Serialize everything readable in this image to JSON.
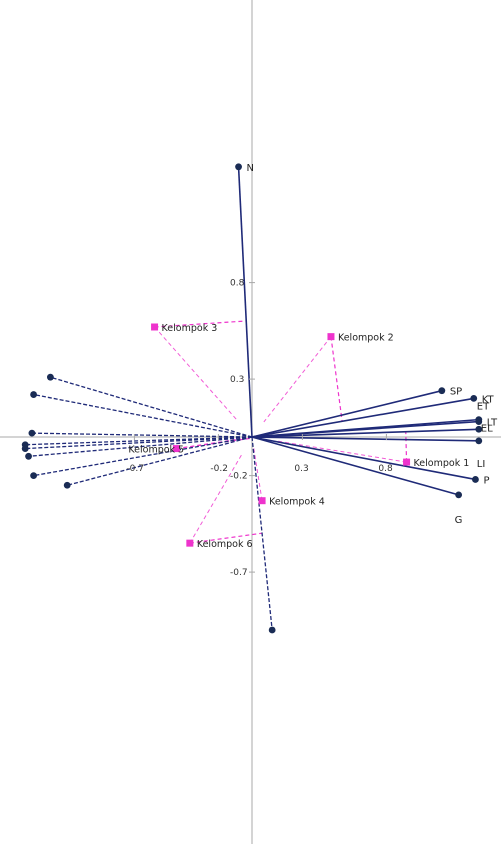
{
  "chart_data": {
    "type": "scatter",
    "title": "",
    "xlabel": "",
    "ylabel": "",
    "xlim": [
      -1.45,
      1.5
    ],
    "ylim": [
      -1.2,
      1.5
    ],
    "x_ticks": [
      {
        "value": -0.7,
        "label": "-0.7"
      },
      {
        "value": -0.2,
        "label": "-0.2"
      },
      {
        "value": 0.3,
        "label": "0.3"
      },
      {
        "value": 0.8,
        "label": "0.8"
      }
    ],
    "y_ticks": [
      {
        "value": 0.8,
        "label": "0.8"
      },
      {
        "value": 0.3,
        "label": "0.3"
      },
      {
        "value": -0.2,
        "label": "-0.2"
      },
      {
        "value": -0.7,
        "label": "-0.7"
      }
    ],
    "labeled_vectors": [
      {
        "label": "N",
        "x": -0.08,
        "y": 1.4
      },
      {
        "label": "SP",
        "x": 1.13,
        "y": 0.24
      },
      {
        "label": "KT",
        "x": 1.32,
        "y": 0.2
      },
      {
        "label": "ET",
        "x": 1.35,
        "y": 0.09
      },
      {
        "label": "LT",
        "x": 1.35,
        "y": 0.08
      },
      {
        "label": "EL",
        "x": 1.35,
        "y": 0.04
      },
      {
        "label": "LI",
        "x": 1.35,
        "y": -0.02
      },
      {
        "label": "P",
        "x": 1.33,
        "y": -0.22
      },
      {
        "label": "G",
        "x": 1.23,
        "y": -0.3
      }
    ],
    "unlabeled_vectors": [
      {
        "x": -1.2,
        "y": 0.31
      },
      {
        "x": -1.3,
        "y": 0.22
      },
      {
        "x": -1.31,
        "y": 0.02
      },
      {
        "x": -1.35,
        "y": -0.04
      },
      {
        "x": -1.35,
        "y": -0.06
      },
      {
        "x": -1.33,
        "y": -0.1
      },
      {
        "x": -1.3,
        "y": -0.2
      },
      {
        "x": -1.1,
        "y": -0.25
      },
      {
        "x": 0.12,
        "y": -1.0
      }
    ],
    "groups": [
      {
        "label": "Kelompok 1",
        "x": 0.92,
        "y": -0.13
      },
      {
        "label": "Kelompok 2",
        "x": 0.47,
        "y": 0.52
      },
      {
        "label": "Kelompok 3",
        "x": -0.58,
        "y": 0.57
      },
      {
        "label": "Kelompok 4",
        "x": 0.06,
        "y": -0.33
      },
      {
        "label": "Kelompok 5",
        "x": -0.45,
        "y": -0.06
      },
      {
        "label": "Kelompok 6",
        "x": -0.37,
        "y": -0.55
      }
    ],
    "colors": {
      "axis": "#a8a8a8",
      "vector": "#1f2a78",
      "endpoint": "#1a2c55",
      "projection": "#ee33cc",
      "group_marker": "#ee33cc"
    }
  }
}
